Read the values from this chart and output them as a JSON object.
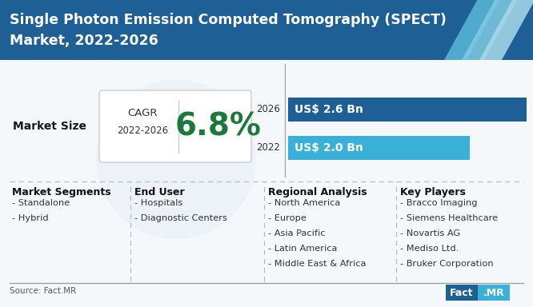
{
  "title_line1": "Single Photon Emission Computed Tomography (SPECT)",
  "title_line2": "Market, 2022-2026",
  "title_bg_color": "#1e5f96",
  "title_text_color": "#ffffff",
  "cagr_label": "CAGR",
  "cagr_period": "2022-2026",
  "cagr_value": "6.8%",
  "cagr_value_color": "#1a7a3a",
  "bar_2026_label": "2026",
  "bar_2026_value": "US$ 2.6 Bn",
  "bar_2026_color": "#1e5f96",
  "bar_2022_label": "2022",
  "bar_2022_value": "US$ 2.0 Bn",
  "bar_2022_color": "#3ab0d8",
  "main_bg": "#ffffff",
  "content_bg": "#f5f8fb",
  "market_size_label": "Market Size",
  "section_headers": [
    "Market Segments",
    "End User",
    "Regional Analysis",
    "Key Players"
  ],
  "segments_col1": [
    "- Standalone",
    "- Hybrid"
  ],
  "segments_col2": [
    "- Hospitals",
    "- Diagnostic Centers"
  ],
  "segments_col3": [
    "- North America",
    "- Europe",
    "- Asia Pacific",
    "- Latin America",
    "- Middle East & Africa"
  ],
  "segments_col4": [
    "- Bracco Imaging",
    "- Siemens Healthcare",
    "- Novartis AG",
    "- Mediso Ltd.",
    "- Bruker Corporation"
  ],
  "source_text": "Source: Fact.MR",
  "factmr_blue": "#1e5f96",
  "factmr_cyan": "#3ab0d8",
  "divider_color": "#bbbbbb",
  "swoosh1_color": "#5ab8d8",
  "swoosh2_color": "#7ecae3",
  "swoosh3_color": "#a8daea"
}
